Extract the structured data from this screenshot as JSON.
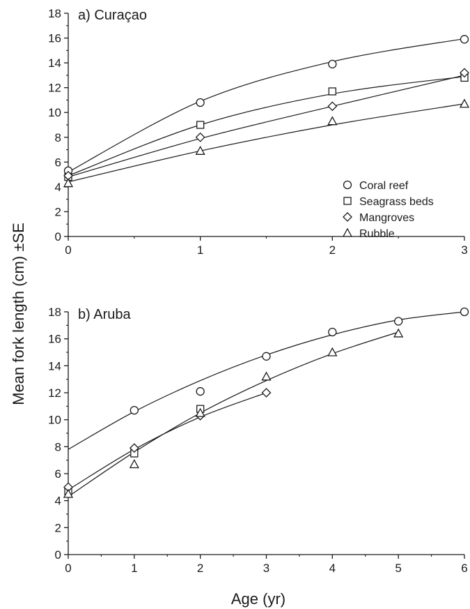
{
  "ylabel": "Mean fork length (cm) ±SE",
  "xlabel": "Age (yr)",
  "legend": {
    "placement": "lower-right of panel a",
    "entries": [
      {
        "label": "Coral reef",
        "marker": "circle"
      },
      {
        "label": "Seagrass beds",
        "marker": "square"
      },
      {
        "label": "Mangroves",
        "marker": "diamond"
      },
      {
        "label": "Rubble",
        "marker": "triangle"
      }
    ]
  },
  "chart_data": [
    {
      "type": "scatter",
      "title": "a) Curaçao",
      "xlim": [
        0,
        3
      ],
      "ylim": [
        0,
        18
      ],
      "x_ticks": [
        0,
        1,
        2,
        3
      ],
      "y_ticks": [
        0,
        2,
        4,
        6,
        8,
        10,
        12,
        14,
        16,
        18
      ],
      "grid": false,
      "series": [
        {
          "name": "Coral reef",
          "marker": "circle",
          "x": [
            0,
            1,
            2,
            3
          ],
          "y": [
            5.3,
            10.8,
            13.9,
            15.9
          ],
          "fit": [
            5.2,
            10.9,
            14.1,
            15.95
          ]
        },
        {
          "name": "Seagrass beds",
          "marker": "square",
          "x": [
            0,
            1,
            2,
            3
          ],
          "y": [
            4.8,
            9.0,
            11.7,
            12.8
          ],
          "fit": [
            4.9,
            9.0,
            11.5,
            12.9
          ]
        },
        {
          "name": "Mangroves",
          "marker": "diamond",
          "x": [
            0,
            1,
            2,
            3
          ],
          "y": [
            4.9,
            8.0,
            10.5,
            13.2
          ],
          "fit": [
            4.8,
            7.9,
            10.5,
            13.0
          ]
        },
        {
          "name": "Rubble",
          "marker": "triangle",
          "x": [
            0,
            1,
            2,
            3
          ],
          "y": [
            4.3,
            6.9,
            9.3,
            10.7
          ],
          "fit": [
            4.4,
            6.9,
            9.0,
            10.7
          ]
        }
      ]
    },
    {
      "type": "scatter",
      "title": "b) Aruba",
      "xlim": [
        0,
        6
      ],
      "ylim": [
        0,
        18
      ],
      "x_ticks": [
        0,
        1,
        2,
        3,
        4,
        5,
        6
      ],
      "y_ticks": [
        0,
        2,
        4,
        6,
        8,
        10,
        12,
        14,
        16,
        18
      ],
      "grid": false,
      "series": [
        {
          "name": "Coral reef",
          "marker": "circle",
          "x": [
            1,
            2,
            3,
            4,
            5,
            6
          ],
          "y": [
            10.7,
            12.1,
            14.7,
            16.5,
            17.3,
            18.0
          ],
          "fit_x": [
            0,
            1,
            2,
            3,
            4,
            5,
            6
          ],
          "fit": [
            7.8,
            10.6,
            12.9,
            14.8,
            16.3,
            17.4,
            18.0
          ]
        },
        {
          "name": "Seagrass beds",
          "marker": "square",
          "x": [
            0,
            1,
            2
          ],
          "y": [
            4.7,
            7.5,
            10.8
          ]
        },
        {
          "name": "Mangroves",
          "marker": "diamond",
          "x": [
            0,
            1,
            2,
            3
          ],
          "y": [
            5.0,
            7.9,
            10.3,
            12.0
          ],
          "fit_x": [
            0,
            1,
            2,
            3
          ],
          "fit": [
            4.8,
            7.8,
            10.2,
            12.0
          ]
        },
        {
          "name": "Rubble",
          "marker": "triangle",
          "x": [
            0,
            1,
            2,
            3,
            4,
            5
          ],
          "y": [
            4.5,
            6.7,
            10.5,
            13.2,
            15.0,
            16.4
          ],
          "fit_x": [
            0,
            1,
            2,
            3,
            4,
            5
          ],
          "fit": [
            4.3,
            7.6,
            10.5,
            12.9,
            14.9,
            16.5
          ]
        }
      ]
    }
  ]
}
